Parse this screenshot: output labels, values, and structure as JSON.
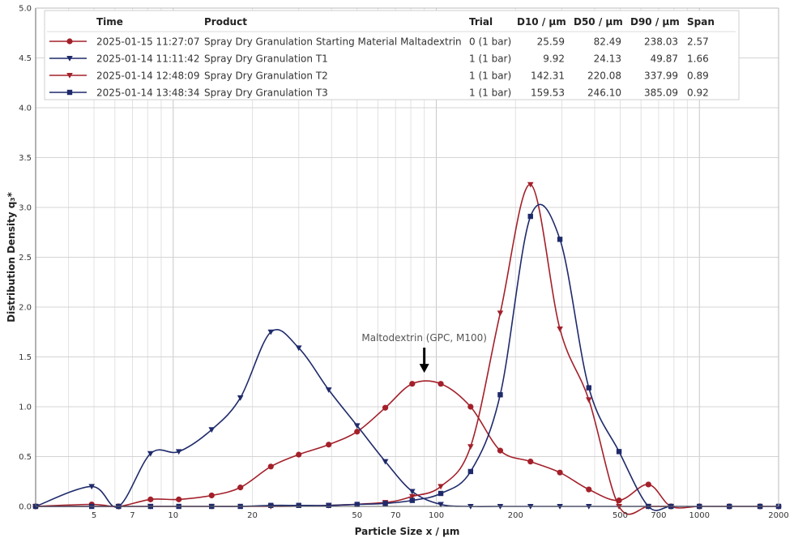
{
  "chart_data": {
    "type": "line",
    "xlabel": "Particle Size x / µm",
    "ylabel": "Distribution Density q₃*",
    "xscale": "log",
    "xlim": [
      3,
      2000
    ],
    "ylim": [
      0,
      5
    ],
    "grid": true,
    "x_ticks": [
      5,
      7,
      10,
      20,
      50,
      70,
      100,
      200,
      500,
      700,
      1000,
      2000
    ],
    "y_ticks": [
      0.0,
      0.5,
      1.0,
      1.5,
      2.0,
      2.5,
      3.0,
      3.5,
      4.0,
      4.5,
      5.0
    ],
    "legend": {
      "placement": "top",
      "columns": [
        "Time",
        "Product",
        "Trial",
        "D10 / µm",
        "D50 / µm",
        "D90 / µm",
        "Span"
      ]
    },
    "annotation": {
      "text": "Maltodextrin (GPC, M100)",
      "x": 90,
      "y": 1.3
    },
    "series": [
      {
        "time": "2025-01-15 11:27:07",
        "product": "Spray Dry Granulation Starting Material Maltadextrin",
        "trial": "0 (1 bar)",
        "d10": "25.59",
        "d50": "82.49",
        "d90": "238.03",
        "span": "2.57",
        "color": "#a3202a",
        "marker": "circle",
        "x": [
          3,
          4.9,
          6.2,
          8.2,
          10.5,
          14,
          18,
          23.5,
          30,
          39,
          50,
          64,
          81,
          104,
          135,
          175,
          228,
          295,
          380,
          495,
          640,
          780,
          1000,
          1300,
          1700,
          2000
        ],
        "y": [
          0.0,
          0.02,
          0.0,
          0.07,
          0.07,
          0.11,
          0.19,
          0.4,
          0.52,
          0.62,
          0.75,
          0.99,
          1.23,
          1.23,
          1.0,
          0.56,
          0.45,
          0.34,
          0.17,
          0.06,
          0.22,
          0.0,
          0.0,
          0.0,
          0.0,
          0.0
        ]
      },
      {
        "time": "2025-01-14 11:11:42",
        "product": "Spray Dry Granulation T1",
        "trial": "1 (1 bar)",
        "d10": "9.92",
        "d50": "24.13",
        "d90": "49.87",
        "span": "1.66",
        "color": "#1f2a6b",
        "marker": "triangle-down",
        "x": [
          3,
          4.9,
          6.2,
          8.2,
          10.5,
          14,
          18,
          23.5,
          30,
          39,
          50,
          64,
          81,
          104,
          135,
          175,
          228,
          295,
          380,
          495,
          640,
          780
        ],
        "y": [
          0.0,
          0.2,
          0.0,
          0.53,
          0.55,
          0.77,
          1.09,
          1.75,
          1.59,
          1.17,
          0.81,
          0.45,
          0.15,
          0.02,
          0.0,
          0.0,
          0.0,
          0.0,
          0.0,
          0.0,
          0.0,
          0.0
        ]
      },
      {
        "time": "2025-01-14 12:48:09",
        "product": "Spray Dry Granulation T2",
        "trial": "1 (1 bar)",
        "d10": "142.31",
        "d50": "220.08",
        "d90": "337.99",
        "span": "0.89",
        "color": "#a3202a",
        "marker": "triangle-down",
        "x": [
          3,
          8.2,
          14,
          23.5,
          39,
          64,
          81,
          104,
          135,
          175,
          228,
          295,
          380,
          495,
          640,
          780
        ],
        "y": [
          0.0,
          0.0,
          0.0,
          0.0,
          0.01,
          0.04,
          0.1,
          0.2,
          0.6,
          1.94,
          3.23,
          1.78,
          1.07,
          0.0,
          0.0,
          0.0
        ]
      },
      {
        "time": "2025-01-14 13:48:34",
        "product": "Spray Dry Granulation T3",
        "trial": "1 (1 bar)",
        "d10": "159.53",
        "d50": "246.10",
        "d90": "385.09",
        "span": "0.92",
        "color": "#1f2a6b",
        "marker": "square",
        "x": [
          3,
          4.9,
          6.2,
          8.2,
          10.5,
          14,
          18,
          23.5,
          30,
          39,
          50,
          64,
          81,
          104,
          135,
          175,
          228,
          295,
          380,
          495,
          640,
          780,
          1000,
          1300,
          1700,
          2000
        ],
        "y": [
          0.0,
          0.0,
          0.0,
          0.0,
          0.0,
          0.0,
          0.0,
          0.01,
          0.01,
          0.01,
          0.02,
          0.03,
          0.06,
          0.13,
          0.35,
          1.12,
          2.91,
          2.68,
          1.19,
          0.55,
          0.0,
          0.0,
          0.0,
          0.0,
          0.0,
          0.0
        ]
      }
    ]
  }
}
